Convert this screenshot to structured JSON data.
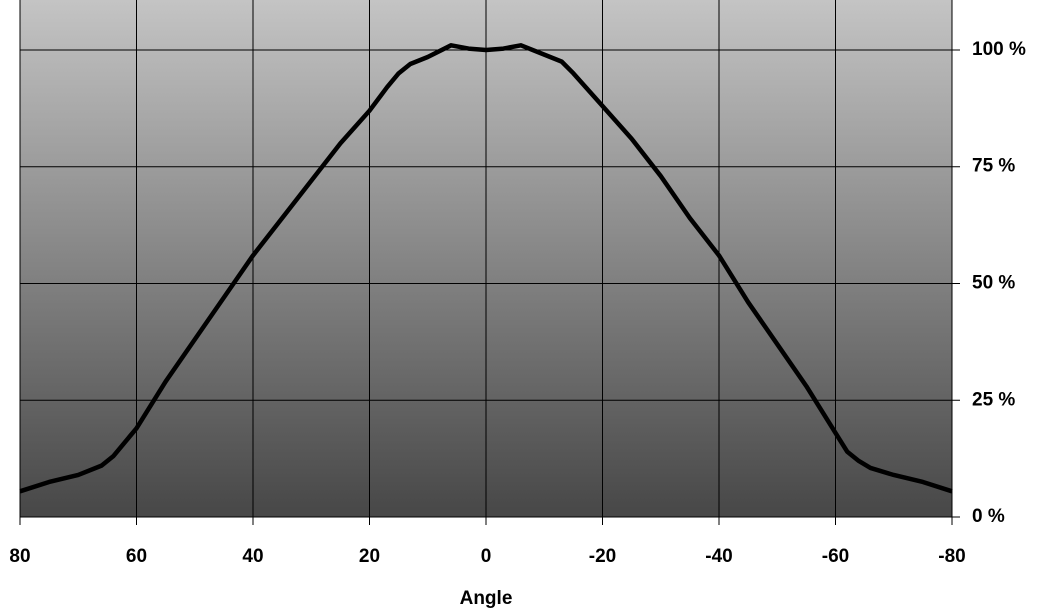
{
  "chart_data": {
    "type": "line",
    "x_label": "Angle",
    "x": [
      80,
      75,
      70,
      66,
      64,
      62,
      60,
      55,
      50,
      45,
      40,
      35,
      30,
      25,
      20,
      17,
      15,
      13,
      10,
      6,
      3,
      0,
      -3,
      -6,
      -10,
      -13,
      -15,
      -20,
      -25,
      -30,
      -35,
      -40,
      -45,
      -50,
      -55,
      -60,
      -62,
      -64,
      -66,
      -70,
      -75,
      -80
    ],
    "series": [
      {
        "color": "#000000",
        "values": [
          5.5,
          7.5,
          9,
          11,
          13,
          16,
          19,
          29,
          38,
          47,
          56,
          64,
          72,
          80,
          87,
          92,
          95,
          97,
          98.5,
          101,
          100.3,
          100,
          100.3,
          101,
          99,
          97.5,
          95,
          88,
          81,
          73,
          64,
          56,
          46,
          37,
          28,
          18,
          14,
          12,
          10.5,
          9,
          7.5,
          5.5
        ]
      }
    ],
    "xlim": [
      80,
      -80
    ],
    "xticks": [
      80,
      60,
      40,
      20,
      0,
      -20,
      -40,
      -60,
      -80
    ],
    "ylim": [
      0,
      110.7
    ],
    "yticks": [
      {
        "value": 0,
        "label": "0 %"
      },
      {
        "value": 25,
        "label": "25 %"
      },
      {
        "value": 50,
        "label": "50 %"
      },
      {
        "value": 75,
        "label": "75 %"
      },
      {
        "value": 100,
        "label": "100 %"
      }
    ],
    "grid": true
  }
}
